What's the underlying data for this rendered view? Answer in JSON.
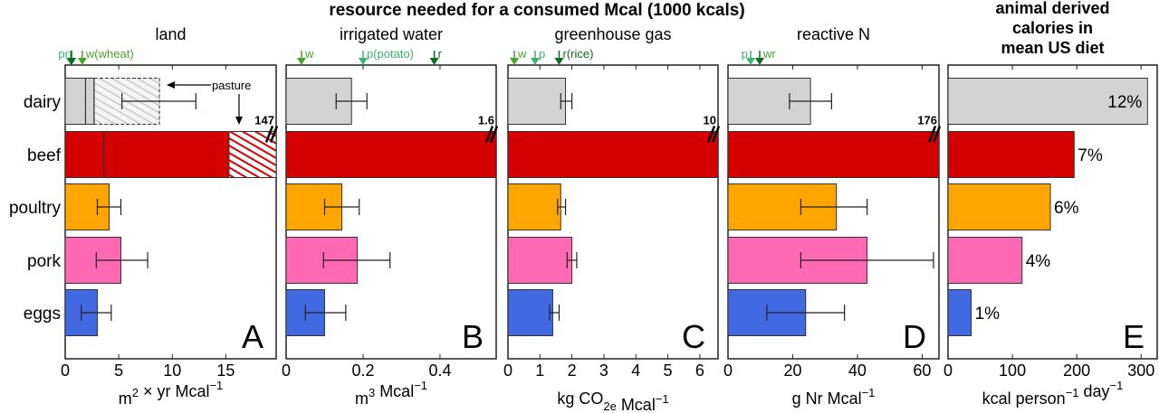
{
  "figure_title": "resource needed for a consumed Mcal (1000 kcals)",
  "categories": [
    "dairy",
    "beef",
    "poultry",
    "pork",
    "eggs"
  ],
  "colors": {
    "dairy": "#d3d3d3",
    "beef": "#d40000",
    "poultry": "#ffa500",
    "pork": "#ff69b4",
    "eggs": "#4169e1",
    "arrow_w": "#4aa32a",
    "arrow_p": "#3cb371",
    "arrow_r": "#0b6b1e"
  },
  "chart_data": [
    {
      "id": "A",
      "type": "bar",
      "orientation": "horizontal",
      "title": "land",
      "panel_label": "A",
      "xlabel": "m2 × yr Mcal-1",
      "xlabel_parts": {
        "base": "m",
        "sup1": "2",
        "mid": " × yr Mcal",
        "sup2": "−1"
      },
      "xlim": [
        0,
        19.7
      ],
      "xticks": [
        0,
        5,
        10,
        15
      ],
      "categories": [
        "dairy",
        "beef",
        "poultry",
        "pork",
        "eggs"
      ],
      "values": [
        8.8,
        147,
        4.1,
        5.2,
        3.0
      ],
      "error_low": [
        5.3,
        null,
        3.0,
        2.9,
        1.5
      ],
      "error_high": [
        12.2,
        null,
        5.2,
        7.7,
        4.3
      ],
      "dividers": {
        "dairy": [
          1.9,
          2.7
        ],
        "beef": [
          3.6
        ]
      },
      "pasture_start": {
        "dairy": 2.7,
        "beef": 15.3
      },
      "break_value_label": "147",
      "break_category": "beef",
      "annotation": "pasture",
      "crop_refs": [
        {
          "label": "p",
          "value": 0.5,
          "color_key": "arrow_p"
        },
        {
          "label": "r",
          "value": 0.6,
          "color_key": "arrow_r"
        },
        {
          "label": "w(wheat)",
          "value": 1.6,
          "color_key": "arrow_w"
        }
      ],
      "crop_ref_text": "pr",
      "grid": false
    },
    {
      "id": "B",
      "type": "bar",
      "orientation": "horizontal",
      "title": "irrigated water",
      "panel_label": "B",
      "xlabel": "m3 Mcal-1",
      "xlabel_parts": {
        "base": "m",
        "sup1": "3",
        "mid": " Mcal",
        "sup2": "−1"
      },
      "xlim": [
        0,
        0.546
      ],
      "xticks": [
        0,
        0.2,
        0.4
      ],
      "categories": [
        "dairy",
        "beef",
        "poultry",
        "pork",
        "eggs"
      ],
      "values": [
        0.17,
        1.6,
        0.145,
        0.185,
        0.1
      ],
      "error_low": [
        0.13,
        null,
        0.1,
        0.097,
        0.05
      ],
      "error_high": [
        0.21,
        null,
        0.19,
        0.27,
        0.155
      ],
      "break_value_label": "1.6",
      "break_category": "beef",
      "crop_refs": [
        {
          "label": "w",
          "value": 0.04,
          "color_key": "arrow_w"
        },
        {
          "label": "p(potato)",
          "value": 0.2,
          "color_key": "arrow_p"
        },
        {
          "label": "r",
          "value": 0.385,
          "color_key": "arrow_r"
        }
      ],
      "grid": false
    },
    {
      "id": "C",
      "type": "bar",
      "orientation": "horizontal",
      "title": "greenhouse gas",
      "panel_label": "C",
      "xlabel": "kg CO2e Mcal-1",
      "xlabel_parts": {
        "base": "kg CO",
        "sub": "2e",
        "mid": " Mcal",
        "sup2": "−1"
      },
      "xlim": [
        0,
        6.57
      ],
      "xticks": [
        0,
        1,
        2,
        3,
        4,
        5,
        6
      ],
      "categories": [
        "dairy",
        "beef",
        "poultry",
        "pork",
        "eggs"
      ],
      "values": [
        1.8,
        10,
        1.65,
        2.0,
        1.4
      ],
      "error_low": [
        1.65,
        null,
        1.55,
        1.85,
        1.3
      ],
      "error_high": [
        2.0,
        null,
        1.8,
        2.15,
        1.6
      ],
      "break_value_label": "10",
      "break_category": "beef",
      "crop_refs": [
        {
          "label": "w",
          "value": 0.2,
          "color_key": "arrow_w"
        },
        {
          "label": "p",
          "value": 0.85,
          "color_key": "arrow_p"
        },
        {
          "label": "r(rice)",
          "value": 1.6,
          "color_key": "arrow_r"
        }
      ],
      "grid": false
    },
    {
      "id": "D",
      "type": "bar",
      "orientation": "horizontal",
      "title": "reactive N",
      "panel_label": "D",
      "xlabel": "g Nr Mcal-1",
      "xlabel_parts": {
        "base": "g Nr Mcal",
        "sup2": "−1"
      },
      "xlim": [
        0,
        65.2
      ],
      "xticks": [
        0,
        20,
        40,
        60
      ],
      "categories": [
        "dairy",
        "beef",
        "poultry",
        "pork",
        "eggs"
      ],
      "values": [
        25.5,
        176,
        33.5,
        43,
        24
      ],
      "error_low": [
        19,
        null,
        22.5,
        22.5,
        12
      ],
      "error_high": [
        32,
        null,
        43,
        63.5,
        36
      ],
      "break_value_label": "176",
      "break_category": "beef",
      "crop_refs": [
        {
          "label": "p",
          "value": 7,
          "color_key": "arrow_p"
        },
        {
          "label": "wr",
          "value": 9.8,
          "color_key": "arrow_r"
        }
      ],
      "grid": false
    },
    {
      "id": "E",
      "type": "bar",
      "orientation": "horizontal",
      "title": "animal derived calories in mean US diet",
      "title_lines": [
        "animal derived",
        "calories in",
        "mean US diet"
      ],
      "panel_label": "E",
      "xlabel": "kcal person-1 day-1",
      "xlabel_parts": {
        "base": "kcal person",
        "sup1": "−1",
        "mid": " day",
        "sup2": "−1"
      },
      "xlim": [
        0,
        325
      ],
      "xticks": [
        0,
        100,
        200,
        300
      ],
      "categories": [
        "dairy",
        "beef",
        "poultry",
        "pork",
        "eggs"
      ],
      "values": [
        310,
        196,
        159,
        115,
        36
      ],
      "data_labels": [
        "12%",
        "7%",
        "6%",
        "4%",
        "1%"
      ],
      "grid": false
    }
  ]
}
